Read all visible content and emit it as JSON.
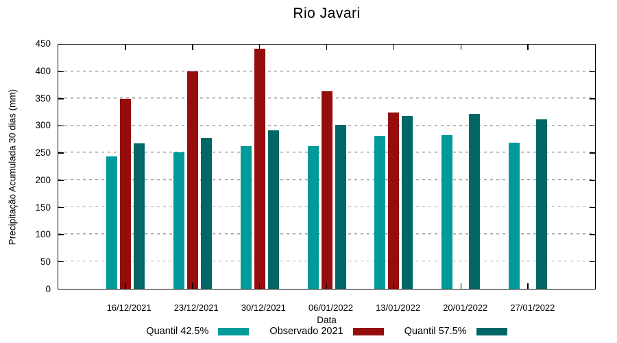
{
  "chart_data": {
    "type": "bar",
    "title": "Rio Javari",
    "xlabel": "Data",
    "ylabel": "Precipitação Acumulada 30 dias (mm)",
    "ylim": [
      0,
      450
    ],
    "ytick_step": 50,
    "grid": "horizontal-dashed",
    "legend_position": "bottom-center",
    "categories": [
      "16/12/2021",
      "23/12/2021",
      "30/12/2021",
      "06/01/2022",
      "13/01/2022",
      "20/01/2022",
      "27/01/2022"
    ],
    "series": [
      {
        "name": "Quantil 42.5%",
        "color": "#009a9a",
        "values": [
          243,
          250,
          262,
          261,
          280,
          281,
          268
        ]
      },
      {
        "name": "Observado 2021",
        "color": "#960d0d",
        "values": [
          348,
          398,
          440,
          362,
          323,
          null,
          null
        ]
      },
      {
        "name": "Quantil 57.5%",
        "color": "#006666",
        "values": [
          267,
          276,
          291,
          300,
          317,
          320,
          311
        ]
      }
    ]
  }
}
